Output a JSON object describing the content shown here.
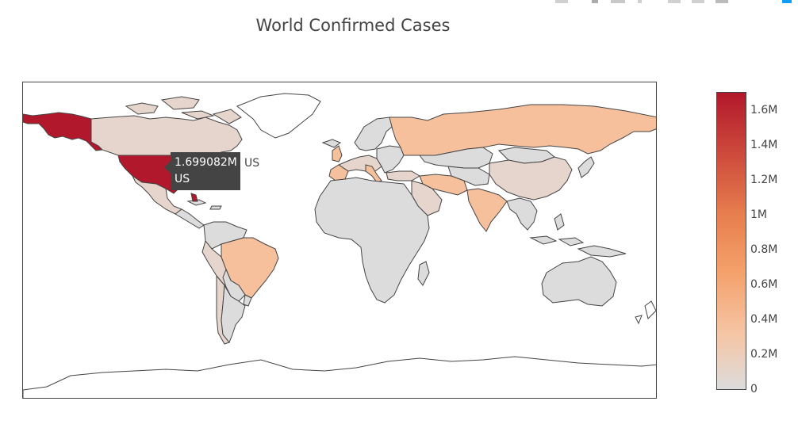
{
  "title": "World Confirmed Cases",
  "colors": {
    "low": "#dcdcdc",
    "light": "#e6d5cc",
    "peach": "#f6c09d",
    "orange": "#f4a06a",
    "max": "#b2182b"
  },
  "colorbar": {
    "ticks": [
      "1.6M",
      "1.4M",
      "1.2M",
      "1M",
      "0.8M",
      "0.6M",
      "0.4M",
      "0.2M",
      "0"
    ]
  },
  "tooltip": {
    "value": "1.699082M",
    "country": "US",
    "name_outside": "US"
  },
  "modebar_icons": [
    "camera-icon",
    "zoom-icon",
    "pan-icon",
    "select-icon",
    "zoom-in-icon",
    "zoom-out-icon",
    "reset-icon",
    "plotly-logo-icon"
  ],
  "chart_data": {
    "type": "choropleth",
    "title": "World Confirmed Cases",
    "colorscale": "Reds",
    "zrange": [
      0,
      1699082
    ],
    "locations": [
      {
        "country": "US",
        "value": 1699082
      },
      {
        "country": "Brazil",
        "value": 420000
      },
      {
        "country": "Russia",
        "value": 380000
      },
      {
        "country": "United Kingdom",
        "value": 270000
      },
      {
        "country": "Spain",
        "value": 240000
      },
      {
        "country": "Italy",
        "value": 230000
      },
      {
        "country": "India",
        "value": 160000
      },
      {
        "country": "Peru",
        "value": 140000
      },
      {
        "country": "Canada",
        "value": 90000
      },
      {
        "country": "China",
        "value": 84000
      },
      {
        "country": "Mexico",
        "value": 80000
      },
      {
        "country": "Iran",
        "value": 140000
      }
    ]
  }
}
